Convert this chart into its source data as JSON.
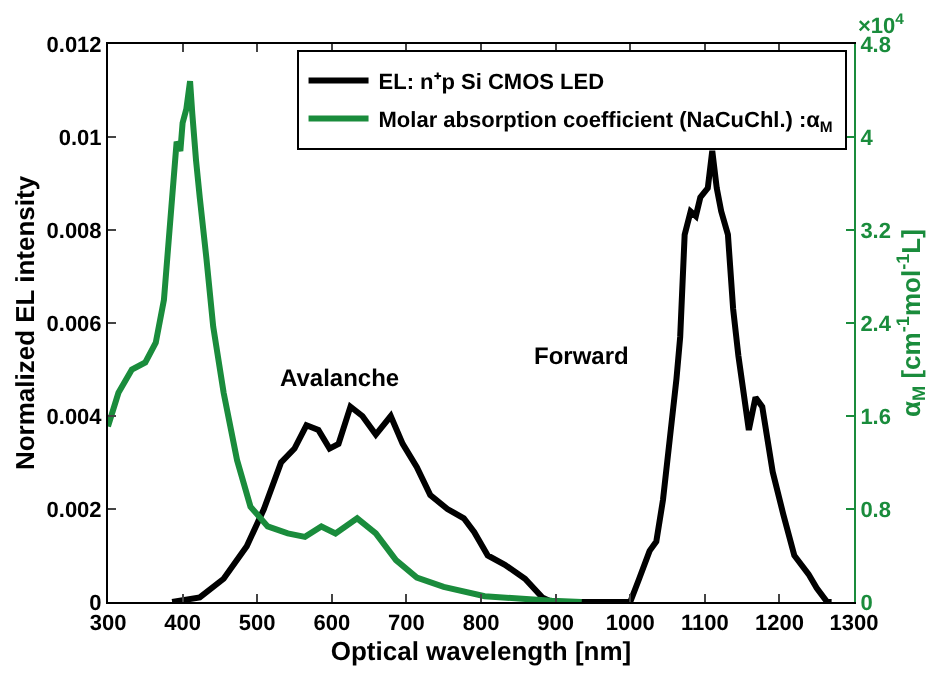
{
  "chart_data": {
    "type": "line",
    "xlabel": "Optical wavelength [nm]",
    "ylabel": "Normalized EL intensity",
    "y2label": "α$_{M}$ [cm$^{-1}$mol$^{-1}$L]",
    "xlim": [
      300,
      1300
    ],
    "xticks": [
      300,
      400,
      500,
      600,
      700,
      800,
      900,
      1000,
      1100,
      1200,
      1300
    ],
    "ylim": [
      0,
      0.012
    ],
    "yticks": [
      0,
      0.002,
      0.004,
      0.006,
      0.008,
      0.01,
      0.012
    ],
    "y2lim": [
      0,
      4.8
    ],
    "y2ticks": [
      0,
      0.8,
      1.6,
      2.4,
      3.2,
      4,
      4.8
    ],
    "legend": "top right",
    "series": [
      {
        "name": "EL: n⁺p Si CMOS LED",
        "color": "#000000",
        "x": [
          386,
          423,
          455,
          486,
          509,
          532,
          550,
          566,
          582,
          597,
          609,
          625,
          641,
          659,
          679,
          695,
          714,
          732,
          755,
          777,
          791,
          809,
          832,
          859,
          882,
          895,
          1000,
          1012,
          1026,
          1035,
          1044,
          1053,
          1062,
          1067,
          1073,
          1081,
          1088,
          1094,
          1104,
          1110,
          1116,
          1122,
          1131,
          1138,
          1145,
          1152,
          1159,
          1168,
          1177,
          1191,
          1205,
          1220,
          1239,
          1250,
          1264,
          1270
        ],
        "values": [
          0,
          0.0001,
          0.0005,
          0.0012,
          0.002,
          0.003,
          0.0033,
          0.0038,
          0.0037,
          0.0033,
          0.0034,
          0.0042,
          0.004,
          0.0036,
          0.004,
          0.0034,
          0.0029,
          0.0023,
          0.002,
          0.0018,
          0.0015,
          0.001,
          0.0008,
          0.0005,
          0.0001,
          0,
          0,
          0.0005,
          0.0011,
          0.0013,
          0.0022,
          0.0035,
          0.0048,
          0.0057,
          0.0079,
          0.0084,
          0.0083,
          0.0087,
          0.0089,
          0.0097,
          0.0089,
          0.0084,
          0.0079,
          0.0063,
          0.0053,
          0.0045,
          0.0037,
          0.0044,
          0.0042,
          0.0028,
          0.0019,
          0.001,
          0.0006,
          0.0003,
          0,
          0
        ]
      },
      {
        "name": "Molar absorption coefficient (NaCuChl.) :α$_{M}$",
        "color": "#1a8c3c",
        "axis": "y2",
        "x": [
          300,
          314,
          332,
          350,
          364,
          375,
          385,
          392,
          397,
          400,
          405,
          410,
          413,
          418,
          423,
          432,
          441,
          455,
          473,
          491,
          514,
          541,
          564,
          586,
          605,
          634,
          659,
          686,
          714,
          750,
          805,
          895,
          935
        ],
        "values": [
          1.51,
          1.8,
          2.0,
          2.06,
          2.23,
          2.6,
          3.4,
          3.96,
          3.88,
          4.12,
          4.24,
          4.48,
          4.2,
          3.8,
          3.48,
          2.95,
          2.37,
          1.8,
          1.22,
          0.82,
          0.65,
          0.59,
          0.56,
          0.65,
          0.59,
          0.72,
          0.59,
          0.36,
          0.21,
          0.13,
          0.05,
          0.01,
          0
        ]
      }
    ],
    "annotations": [
      "Avalanche",
      "Forward",
      "×10$^{4}$"
    ]
  }
}
